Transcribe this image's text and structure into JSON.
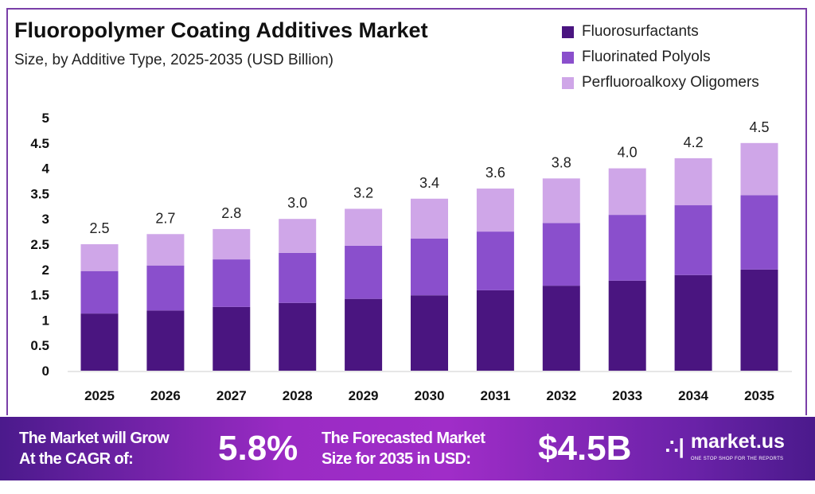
{
  "title": "Fluoropolymer Coating Additives Market",
  "subtitle": "Size, by Additive Type, 2025-2035 (USD Billion)",
  "colors": {
    "Fluorosurfactants": "#4a1580",
    "Fluorinated Polyols": "#8a4fcc",
    "Perfluoroalkoxy Oligomers": "#cfa6e8"
  },
  "chart_data": {
    "type": "bar",
    "stacked": true,
    "title": "Fluoropolymer Coating Additives Market",
    "subtitle": "Size, by Additive Type, 2025-2035 (USD Billion)",
    "categories": [
      "2025",
      "2026",
      "2027",
      "2028",
      "2029",
      "2030",
      "2031",
      "2032",
      "2033",
      "2034",
      "2035"
    ],
    "series": [
      {
        "name": "Fluorosurfactants",
        "values": [
          1.13,
          1.19,
          1.26,
          1.34,
          1.42,
          1.49,
          1.59,
          1.68,
          1.78,
          1.89,
          2.0
        ]
      },
      {
        "name": "Fluorinated Polyols",
        "values": [
          0.84,
          0.89,
          0.94,
          0.99,
          1.05,
          1.12,
          1.16,
          1.24,
          1.3,
          1.38,
          1.47
        ]
      },
      {
        "name": "Perfluoroalkoxy Oligomers",
        "values": [
          0.53,
          0.62,
          0.6,
          0.67,
          0.73,
          0.79,
          0.85,
          0.88,
          0.92,
          0.93,
          1.03
        ]
      }
    ],
    "totals_labels": [
      "2.5",
      "2.7",
      "2.8",
      "3.0",
      "3.2",
      "3.4",
      "3.6",
      "3.8",
      "4.0",
      "4.2",
      "4.5"
    ],
    "yticks": [
      "0",
      "0.5",
      "1",
      "1.5",
      "2",
      "2.5",
      "3",
      "3.5",
      "4",
      "4.5",
      "5"
    ],
    "ylim": [
      0,
      5
    ],
    "grid": false,
    "legend": "top-right",
    "xlabel": "",
    "ylabel": ""
  },
  "banner": {
    "cagr_label_1": "The Market will Grow",
    "cagr_label_2": "At the CAGR of:",
    "cagr_value": "5.8%",
    "forecast_label_1": "The Forecasted Market",
    "forecast_label_2": "Size for 2035 in USD:",
    "forecast_value": "$4.5B",
    "logo_text": "market.us",
    "logo_tagline": "ONE STOP SHOP FOR THE REPORTS"
  }
}
